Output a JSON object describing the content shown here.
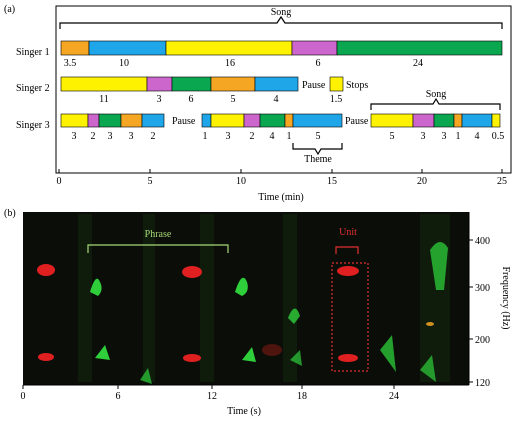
{
  "panel_a": {
    "label": "(a)",
    "song_label": "Song",
    "singers": [
      "Singer 1",
      "Singer 2",
      "Singer 3"
    ],
    "pause_label": "Pause",
    "stops_label": "Stops",
    "theme_label": "Theme",
    "song2_label": "Song",
    "colors": {
      "orange": "#f5a623",
      "blue": "#1ea6e8",
      "yellow": "#fff200",
      "magenta": "#cc66cc",
      "green": "#0aa650"
    },
    "rows": [
      {
        "segments": [
          {
            "color": "orange",
            "duration": "3.5"
          },
          {
            "color": "blue",
            "duration": "10"
          },
          {
            "color": "yellow",
            "duration": "16"
          },
          {
            "color": "magenta",
            "duration": "6"
          },
          {
            "color": "green",
            "duration": "24"
          }
        ]
      },
      {
        "segments": [
          {
            "color": "yellow",
            "duration": "11"
          },
          {
            "color": "magenta",
            "duration": "3"
          },
          {
            "color": "green",
            "duration": "6"
          },
          {
            "color": "orange",
            "duration": "5"
          },
          {
            "color": "blue",
            "duration": "4"
          },
          {
            "color": "yellow",
            "duration": "1.5"
          }
        ]
      },
      {
        "segments": [
          {
            "color": "yellow",
            "duration": "3"
          },
          {
            "color": "magenta",
            "duration": "2"
          },
          {
            "color": "green",
            "duration": "3"
          },
          {
            "color": "orange",
            "duration": "3"
          },
          {
            "color": "blue",
            "duration": "2"
          },
          {
            "color": "blue",
            "duration": "1"
          },
          {
            "color": "yellow",
            "duration": "3"
          },
          {
            "color": "magenta",
            "duration": "2"
          },
          {
            "color": "green",
            "duration": "4"
          },
          {
            "color": "orange",
            "duration": "1"
          },
          {
            "color": "blue",
            "duration": "5"
          },
          {
            "color": "yellow",
            "duration": "5"
          },
          {
            "color": "magenta",
            "duration": "3"
          },
          {
            "color": "green",
            "duration": "3"
          },
          {
            "color": "orange",
            "duration": "1"
          },
          {
            "color": "blue",
            "duration": "4"
          },
          {
            "color": "yellow",
            "duration": "0.5"
          }
        ]
      }
    ],
    "x_ticks": [
      "0",
      "5",
      "10",
      "15",
      "20",
      "25"
    ],
    "x_axis_label": "Time (min)"
  },
  "panel_b": {
    "label": "(b)",
    "phrase_label": "Phrase",
    "unit_label": "Unit",
    "x_ticks": [
      "0",
      "6",
      "12",
      "18",
      "24"
    ],
    "x_axis_label": "Time (s)",
    "y_ticks": [
      "400",
      "300",
      "200",
      "120"
    ],
    "y_axis_label": "Frequency (Hz)",
    "colors": {
      "background": "#0a0d08",
      "red": "#e02020",
      "green": "#2ecf3a",
      "annotation_green": "#a8d878",
      "annotation_red": "#e03030"
    }
  }
}
